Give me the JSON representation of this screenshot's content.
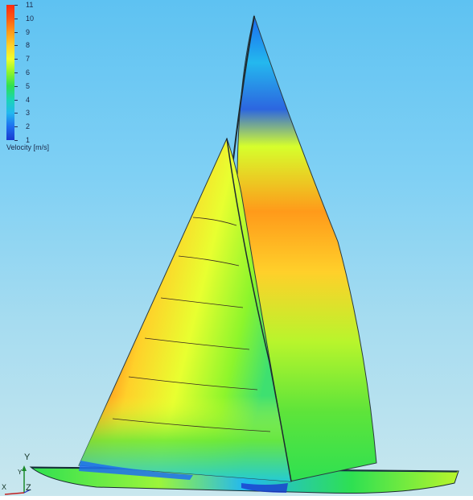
{
  "legend": {
    "title": "Velocity [m/s]",
    "ticks": [
      "11",
      "10",
      "9",
      "8",
      "7",
      "6",
      "5",
      "4",
      "3",
      "2",
      "1"
    ],
    "range": [
      1,
      11
    ],
    "colormap": [
      "#ff2a10",
      "#ff9a1a",
      "#f0ff2c",
      "#2ee052",
      "#22b8f0",
      "#1a3ad0"
    ]
  },
  "axes": {
    "y_label": "Y",
    "y_small_label": "Y",
    "z_label": "Z",
    "x_label": "X"
  },
  "scene": {
    "background_top": "#5ec2f2",
    "background_bottom": "#c9e7ee"
  }
}
